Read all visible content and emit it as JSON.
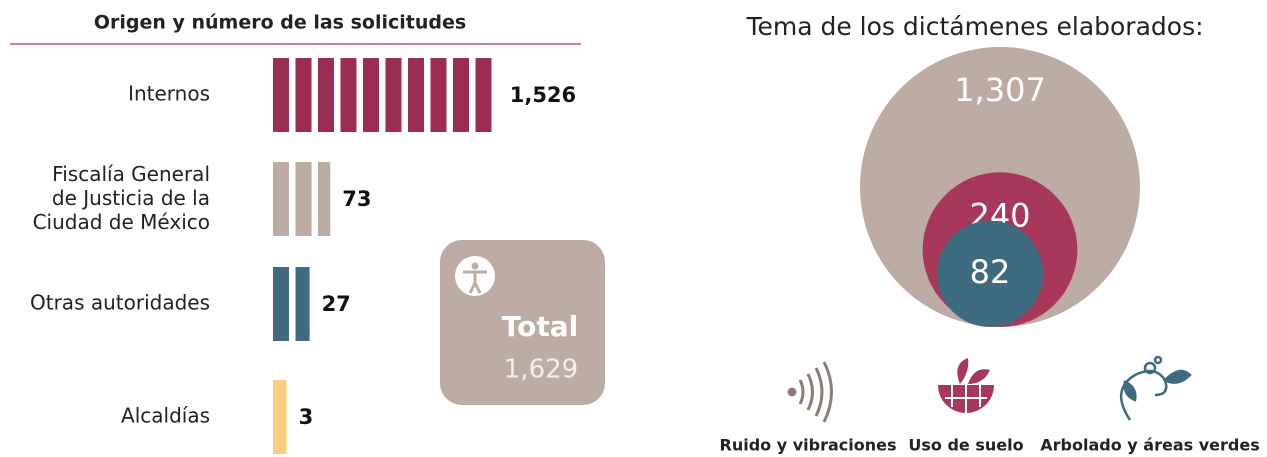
{
  "chart_data": [
    {
      "type": "pictogram",
      "title": "Origen y número de las solicitudes",
      "categories": [
        "Internos",
        "Fiscalía General\nde Justicia de la\nCiudad de México",
        "Otras autoridades",
        "Alcaldías"
      ],
      "values": [
        1526,
        73,
        27,
        3
      ],
      "value_labels": [
        "1,526",
        "73",
        "27",
        "3"
      ],
      "colors": [
        "#9b2d52",
        "#bcaca3",
        "#3f6b80",
        "#f9cf85"
      ],
      "total": {
        "label": "Total",
        "value": 1629,
        "value_label": "1,629"
      }
    },
    {
      "type": "nested-bubble",
      "title": "Tema de los dictámenes elaborados:",
      "categories": [
        "Ruido y vibraciones",
        "Uso de suelo",
        "Arbolado y áreas verdes"
      ],
      "values": [
        1307,
        240,
        82
      ],
      "value_labels": [
        "1,307",
        "240",
        "82"
      ],
      "colors": [
        "#bcaca3",
        "#a7385c",
        "#3f6b80"
      ]
    }
  ]
}
